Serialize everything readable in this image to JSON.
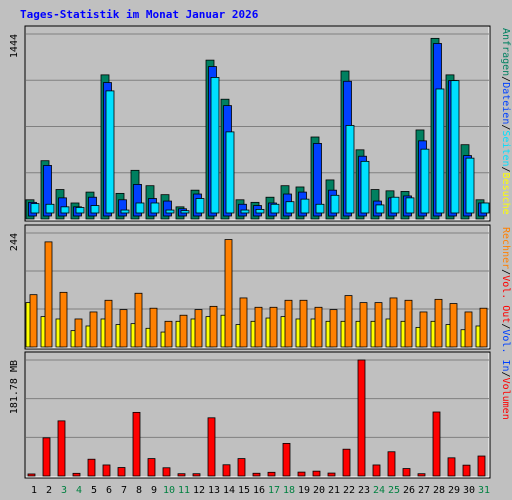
{
  "chart_data": {
    "type": "bar",
    "title": "Tages-Statistik im Monat Januar 2026",
    "categories": [
      "1",
      "2",
      "3",
      "4",
      "5",
      "6",
      "7",
      "8",
      "9",
      "10",
      "11",
      "12",
      "13",
      "14",
      "15",
      "16",
      "17",
      "18",
      "19",
      "20",
      "21",
      "22",
      "23",
      "24",
      "25",
      "26",
      "27",
      "28",
      "29",
      "30",
      "31"
    ],
    "weekend_days": [
      "3",
      "4",
      "10",
      "11",
      "17",
      "18",
      "24",
      "25",
      "31"
    ],
    "colors": {
      "background": "#c0c0c0",
      "title": "#0000ff",
      "weekday_label": "#000000",
      "weekend_label": "#008040",
      "anfragen": "#008060",
      "dateien": "#0040ff",
      "seiten": "#00e0ff",
      "besuche": "#ffff00",
      "rechner": "#ff8000",
      "volumen": "#ff0000"
    },
    "panels": [
      {
        "id": "hits",
        "ymax_label": "1444",
        "ymax": 1444,
        "series": [
          {
            "key": "anfragen",
            "values": [
              150,
              455,
              230,
              125,
              210,
              1125,
              200,
              380,
              260,
              190,
              95,
              225,
              1240,
              935,
              150,
              130,
              170,
              260,
              250,
              640,
              305,
              1155,
              540,
              230,
              220,
              215,
              695,
              1410,
              1125,
              580,
              150
            ]
          },
          {
            "key": "dateien",
            "values": [
              130,
              418,
              165,
              95,
              170,
              1065,
              150,
              270,
              160,
              140,
              80,
              195,
              1190,
              885,
              115,
              105,
              125,
              195,
              210,
              590,
              225,
              1075,
              490,
              140,
              165,
              180,
              610,
              1370,
              1080,
              495,
              125
            ]
          },
          {
            "key": "seiten",
            "values": [
              120,
              115,
              95,
              90,
              105,
              1000,
              70,
              125,
              125,
              70,
              65,
              160,
              1105,
              680,
              70,
              75,
              115,
              135,
              155,
              115,
              185,
              730,
              450,
              110,
              170,
              165,
              545,
              1015,
              1080,
              475,
              125
            ]
          }
        ],
        "legend": [
          {
            "key": "anfragen",
            "label": "Anfragen"
          },
          {
            "sep": "/"
          },
          {
            "key": "dateien",
            "label": "Dateien"
          },
          {
            "sep": "/"
          },
          {
            "key": "seiten",
            "label": "Seiten"
          },
          {
            "sep": "/"
          },
          {
            "key": "besuche",
            "label": "Besuche"
          }
        ]
      },
      {
        "id": "visits",
        "ymax_label": "244",
        "ymax": 244,
        "series": [
          {
            "key": "besuche",
            "values": [
              95,
              65,
              60,
              35,
              45,
              60,
              48,
              50,
              40,
              32,
              55,
              60,
              65,
              68,
              48,
              55,
              62,
              65,
              60,
              60,
              55,
              55,
              55,
              55,
              60,
              55,
              42,
              55,
              48,
              37,
              45
            ]
          },
          {
            "key": "rechner",
            "values": [
              112,
              225,
              117,
              60,
              75,
              100,
              80,
              115,
              83,
              55,
              68,
              80,
              87,
              230,
              105,
              85,
              85,
              100,
              100,
              85,
              80,
              110,
              95,
              95,
              105,
              100,
              75,
              102,
              93,
              75,
              83
            ]
          }
        ],
        "legend": [
          {
            "key": "rechner",
            "label": "Rechner"
          },
          {
            "sep": "/"
          },
          {
            "key": "volumen",
            "label": "Vol. Out"
          },
          {
            "sep": "/"
          },
          {
            "key": "dateien",
            "label": "Vol. In"
          },
          {
            "sep": "/"
          },
          {
            "key": "volumen",
            "label": "Volumen"
          }
        ]
      },
      {
        "id": "volume",
        "ymax_label": "181.78 MB",
        "ymax": 181.78,
        "series": [
          {
            "key": "volumen",
            "values": [
              3.2,
              59.8,
              86.4,
              4.2,
              26.3,
              17.3,
              13.3,
              99.7,
              27.3,
              12.9,
              3.6,
              3.6,
              91.2,
              17.6,
              27.3,
              4.3,
              5.8,
              51.1,
              6.1,
              7.6,
              4.6,
              42.0,
              181.8,
              17.3,
              38.0,
              11.7,
              3.6,
              100.3,
              28.5,
              17.0,
              31.3
            ]
          }
        ]
      }
    ]
  }
}
